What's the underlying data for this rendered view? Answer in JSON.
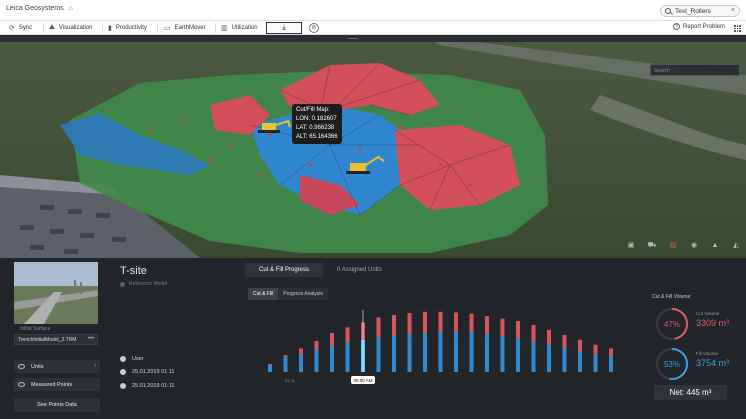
{
  "app": {
    "brand": "Leica Geosystems"
  },
  "search": {
    "value": "Test_Rollers"
  },
  "nav": {
    "items": [
      "Sync",
      "Visualization",
      "Productivity",
      "EarthMover",
      "Utilization"
    ],
    "report": "Report Problem"
  },
  "map": {
    "search_placeholder": "Search",
    "tooltip": {
      "title": "Cut/Fill Map:",
      "lon": "LON: 0.182607",
      "lat": "LAT: 0.966238",
      "alt": "ALT: 65.164366"
    }
  },
  "panel": {
    "initial_surface_label": "Initial Surface",
    "model_name": "TrenchInitialModel_2.TRM",
    "units_label": "Units",
    "measured_points_label": "Measured Points",
    "see_points_button": "See Points Data",
    "site_title": "T-site",
    "site_subtitle": "Reference Model",
    "user_label": "User",
    "date_1": "25.01.2019 01:11",
    "date_2": "25.01.2019 01:11",
    "tabs": [
      "Cut & Fill Progress",
      "0 Assigned Units"
    ],
    "subtabs": [
      "Cut & Fill",
      "Progress Analysis"
    ]
  },
  "chart_data": {
    "type": "bar",
    "categories": [
      "01:11",
      "",
      "",
      "",
      "",
      "",
      "",
      "",
      "",
      "",
      "",
      "",
      "",
      "",
      "",
      "",
      "",
      "",
      "",
      "",
      "",
      "",
      ""
    ],
    "highlight_label": "06:00 AM",
    "series": [
      {
        "values": [
          0.11,
          0.24,
          0.29,
          0.36,
          0.42,
          0.47,
          0.52,
          0.56,
          0.59,
          0.61,
          0.63,
          0.64,
          0.65,
          0.64,
          0.61,
          0.58,
          0.54,
          0.49,
          0.44,
          0.38,
          0.33,
          0.28,
          0.26
        ]
      },
      {
        "values": [
          0.13,
          0.27,
          0.38,
          0.5,
          0.63,
          0.72,
          0.8,
          0.88,
          0.92,
          0.95,
          0.97,
          0.97,
          0.96,
          0.94,
          0.9,
          0.86,
          0.82,
          0.76,
          0.68,
          0.6,
          0.52,
          0.44,
          0.38
        ]
      }
    ],
    "colors": {
      "cut": "#d9545f",
      "fill": "#2f8bd0",
      "highlight": "#5fc3ff"
    }
  },
  "volume": {
    "title": "Cut & Fill Volume",
    "cut": {
      "label": "Cut Volume",
      "percent": "47%",
      "value": "3309 m³",
      "fraction": 0.47,
      "color": "#e05a63"
    },
    "fill": {
      "label": "Fill Volume",
      "percent": "53%",
      "value": "3754 m³",
      "fraction": 0.53,
      "color": "#3b9fe0"
    },
    "net": "Net: 445 m³"
  }
}
